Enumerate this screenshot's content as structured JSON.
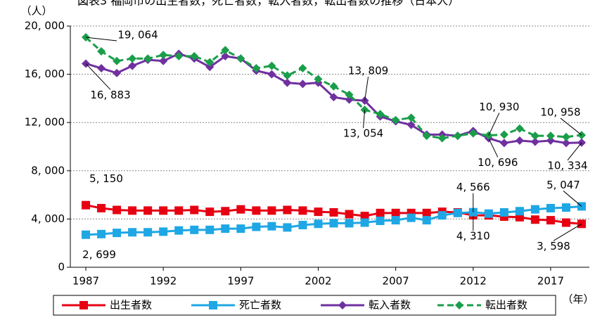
{
  "chart_data": {
    "type": "line",
    "title": "図表3 福岡市の出生者数，死亡者数，転入者数，転出者数の推移（日本人）",
    "y_unit": "（人）",
    "x_unit": "（年）",
    "x": [
      1987,
      1988,
      1989,
      1990,
      1991,
      1992,
      1993,
      1994,
      1995,
      1996,
      1997,
      1998,
      1999,
      2000,
      2001,
      2002,
      2003,
      2004,
      2005,
      2006,
      2007,
      2008,
      2009,
      2010,
      2011,
      2012,
      2013,
      2014,
      2015,
      2016,
      2017,
      2018,
      2019
    ],
    "xlim": [
      1986,
      2019.5
    ],
    "xticks": [
      1987,
      1992,
      1997,
      2002,
      2007,
      2012,
      2017
    ],
    "ylim": [
      0,
      20000
    ],
    "yticks": [
      0,
      {
        "value": 4000,
        "label": "4, 000"
      },
      {
        "value": 8000,
        "label": "8, 000"
      },
      {
        "value": 12000,
        "label": "12, 000"
      },
      {
        "value": 16000,
        "label": "16, 000"
      },
      {
        "value": 20000,
        "label": "20, 000"
      }
    ],
    "grid": true,
    "legend": "bottom",
    "series": [
      {
        "name": "出生者数",
        "color": "#e60012",
        "marker": "square",
        "dash": false,
        "values": [
          5150,
          4900,
          4750,
          4700,
          4700,
          4700,
          4700,
          4750,
          4600,
          4650,
          4800,
          4700,
          4700,
          4750,
          4700,
          4600,
          4550,
          4400,
          4250,
          4500,
          4500,
          4500,
          4500,
          4600,
          4550,
          4310,
          4300,
          4200,
          4150,
          3950,
          3900,
          3700,
          3598
        ],
        "value_labels": [
          "5, 150",
          null,
          null,
          null,
          null,
          null,
          null,
          null,
          null,
          null,
          null,
          null,
          null,
          null,
          null,
          null,
          null,
          null,
          null,
          null,
          null,
          null,
          null,
          null,
          null,
          "4, 310",
          null,
          null,
          null,
          null,
          null,
          null,
          "3, 598"
        ]
      },
      {
        "name": "死亡者数",
        "color": "#1ea7e4",
        "marker": "square",
        "dash": false,
        "values": [
          2699,
          2750,
          2850,
          2900,
          2900,
          2950,
          3050,
          3100,
          3100,
          3200,
          3200,
          3350,
          3400,
          3300,
          3500,
          3600,
          3650,
          3650,
          3700,
          3850,
          3900,
          4100,
          3900,
          4300,
          4500,
          4566,
          4450,
          4550,
          4650,
          4800,
          4900,
          4950,
          5047
        ],
        "value_labels": [
          "2, 699",
          null,
          null,
          null,
          null,
          null,
          null,
          null,
          null,
          null,
          null,
          null,
          null,
          null,
          null,
          null,
          null,
          null,
          null,
          null,
          null,
          null,
          null,
          null,
          null,
          "4, 566",
          null,
          null,
          null,
          null,
          null,
          null,
          "5, 047"
        ]
      },
      {
        "name": "転入者数",
        "color": "#7030a0",
        "marker": "diamond",
        "dash": false,
        "values": [
          16883,
          16500,
          16100,
          16700,
          17200,
          17100,
          17700,
          17300,
          16600,
          17500,
          17300,
          16300,
          16000,
          15300,
          15200,
          15300,
          14100,
          13900,
          13809,
          12500,
          12100,
          11800,
          11000,
          11000,
          10900,
          11300,
          10696,
          10300,
          10500,
          10400,
          10500,
          10300,
          10334
        ],
        "value_labels": [
          "16, 883",
          null,
          null,
          null,
          null,
          null,
          null,
          null,
          null,
          null,
          null,
          null,
          null,
          null,
          null,
          null,
          null,
          null,
          "13, 809",
          null,
          null,
          null,
          null,
          null,
          null,
          null,
          "10, 696",
          null,
          null,
          null,
          null,
          null,
          "10, 334"
        ]
      },
      {
        "name": "転出者数",
        "color": "#1a9e4a",
        "marker": "diamond",
        "dash": true,
        "values": [
          19064,
          17900,
          17100,
          17300,
          17300,
          17600,
          17500,
          17500,
          17000,
          18000,
          17300,
          16500,
          16700,
          15900,
          16500,
          15600,
          15000,
          14300,
          13054,
          12700,
          12200,
          12400,
          10900,
          10700,
          10900,
          11100,
          10930,
          11000,
          11500,
          10900,
          10900,
          10800,
          10958
        ],
        "value_labels": [
          "19, 064",
          null,
          null,
          null,
          null,
          null,
          null,
          null,
          null,
          null,
          null,
          null,
          null,
          null,
          null,
          null,
          null,
          null,
          "13, 054",
          null,
          null,
          null,
          null,
          null,
          null,
          null,
          "10, 930",
          null,
          null,
          null,
          null,
          null,
          "10, 958"
        ]
      }
    ]
  }
}
